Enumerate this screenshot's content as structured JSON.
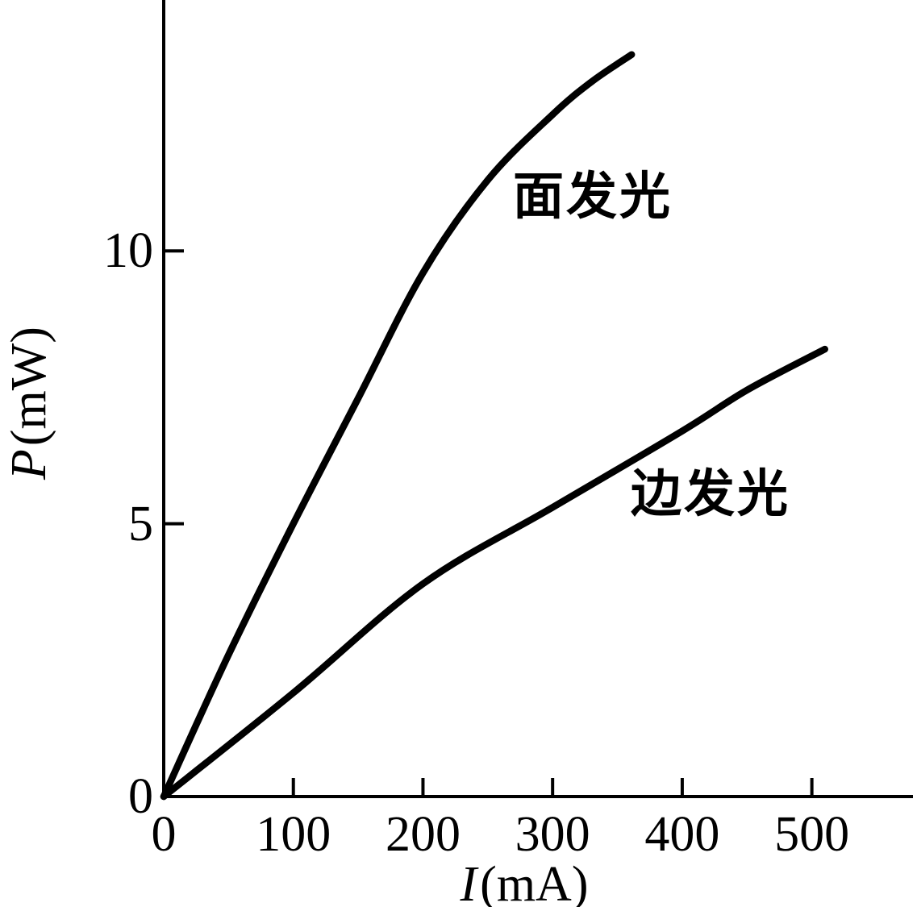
{
  "chart_data": {
    "type": "line",
    "title": "",
    "xlabel": "I(mA)",
    "ylabel": "P(mW)",
    "xlim": [
      0,
      578
    ],
    "ylim": [
      0,
      14.6
    ],
    "x_ticks": [
      0,
      100,
      200,
      300,
      400,
      500
    ],
    "y_ticks": [
      0,
      5,
      10
    ],
    "grid": false,
    "legend_position": "inline-labels-on-curves",
    "line_color": "#000000",
    "background_color": "#ffffff",
    "series": [
      {
        "name": "面发光",
        "x": [
          0,
          50,
          100,
          150,
          200,
          250,
          300,
          330,
          361
        ],
        "y": [
          0,
          2.6,
          5.0,
          7.3,
          9.6,
          11.3,
          12.5,
          13.1,
          13.6
        ]
      },
      {
        "name": "边发光",
        "x": [
          0,
          100,
          200,
          300,
          400,
          450,
          510
        ],
        "y": [
          0,
          1.9,
          3.9,
          5.3,
          6.7,
          7.45,
          8.2
        ]
      }
    ]
  },
  "labels": {
    "y_var": "P",
    "y_unit": "(mW)",
    "x_var": "I",
    "x_unit": "(mA)"
  }
}
